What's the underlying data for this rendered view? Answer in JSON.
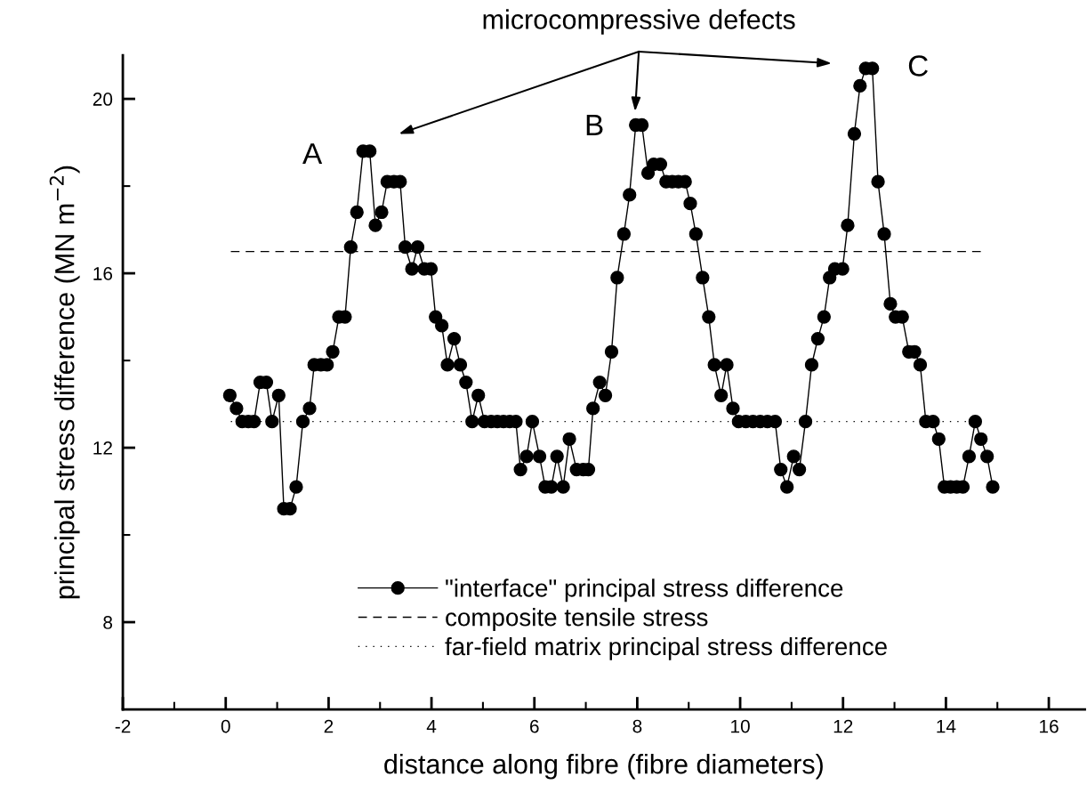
{
  "chart_data": {
    "type": "line",
    "xlabel": "distance along fibre (fibre diameters)",
    "ylabel": "principal stress difference (MN m$^{−2}$)",
    "xlim": [
      -2,
      16.7
    ],
    "ylim": [
      6,
      21
    ],
    "xticks": [
      -2,
      {
        "value": -1,
        "label": null
      },
      0,
      {
        "value": 1,
        "label": null
      },
      2,
      {
        "value": 3,
        "label": null
      },
      4,
      {
        "value": 5,
        "label": null
      },
      6,
      {
        "value": 7,
        "label": null
      },
      8,
      {
        "value": 9,
        "label": null
      },
      10,
      {
        "value": 11,
        "label": null
      },
      12,
      {
        "value": 13,
        "label": null
      },
      14,
      {
        "value": 15,
        "label": null
      },
      16
    ],
    "yticks": [
      8,
      {
        "value": 10,
        "label": null
      },
      12,
      {
        "value": 14,
        "label": null
      },
      16,
      {
        "value": 18,
        "label": null
      },
      20
    ],
    "grid": false,
    "legend": "bottom",
    "series": [
      {
        "name": "\"interface\" principal stress difference",
        "color": "#000000",
        "marker": "circle",
        "line_style": "solid",
        "x": [
          0.08,
          0.21,
          0.32,
          0.44,
          0.55,
          0.67,
          0.79,
          0.9,
          1.03,
          1.13,
          1.25,
          1.37,
          1.5,
          1.63,
          1.72,
          1.85,
          1.97,
          2.08,
          2.2,
          2.32,
          2.43,
          2.55,
          2.67,
          2.8,
          2.91,
          3.03,
          3.14,
          3.27,
          3.39,
          3.49,
          3.62,
          3.73,
          3.86,
          3.99,
          4.08,
          4.2,
          4.31,
          4.44,
          4.56,
          4.67,
          4.79,
          4.91,
          5.03,
          5.16,
          5.28,
          5.4,
          5.52,
          5.64,
          5.73,
          5.85,
          5.96,
          6.1,
          6.21,
          6.33,
          6.44,
          6.56,
          6.68,
          6.82,
          6.95,
          7.05,
          7.14,
          7.27,
          7.38,
          7.5,
          7.61,
          7.74,
          7.85,
          7.97,
          8.09,
          8.21,
          8.32,
          8.45,
          8.56,
          8.68,
          8.8,
          8.93,
          9.03,
          9.14,
          9.27,
          9.39,
          9.5,
          9.63,
          9.74,
          9.86,
          9.97,
          10.11,
          10.25,
          10.39,
          10.53,
          10.68,
          10.79,
          10.91,
          11.04,
          11.15,
          11.27,
          11.39,
          11.51,
          11.63,
          11.74,
          11.84,
          11.99,
          12.09,
          12.22,
          12.33,
          12.44,
          12.57,
          12.68,
          12.8,
          12.92,
          13.02,
          13.15,
          13.28,
          13.39,
          13.5,
          13.61,
          13.75,
          13.86,
          13.97,
          14.09,
          14.21,
          14.33,
          14.45,
          14.57,
          14.68,
          14.8,
          14.91
        ],
        "values": [
          13.2,
          12.9,
          12.6,
          12.6,
          12.6,
          13.5,
          13.5,
          12.6,
          13.2,
          10.6,
          10.6,
          11.1,
          12.6,
          12.9,
          13.9,
          13.9,
          13.9,
          14.2,
          15.0,
          15.0,
          16.6,
          17.4,
          18.8,
          18.8,
          17.1,
          17.4,
          18.1,
          18.1,
          18.1,
          16.6,
          16.1,
          16.6,
          16.1,
          16.1,
          15.0,
          14.8,
          13.9,
          14.5,
          13.9,
          13.5,
          12.6,
          13.2,
          12.6,
          12.6,
          12.6,
          12.6,
          12.6,
          12.6,
          11.5,
          11.8,
          12.6,
          11.8,
          11.1,
          11.1,
          11.8,
          11.1,
          12.2,
          11.5,
          11.5,
          11.5,
          12.9,
          13.5,
          13.2,
          14.2,
          15.9,
          16.9,
          17.8,
          19.4,
          19.4,
          18.3,
          18.5,
          18.5,
          18.1,
          18.1,
          18.1,
          18.1,
          17.6,
          16.9,
          15.9,
          15.0,
          13.9,
          13.2,
          13.9,
          12.9,
          12.6,
          12.6,
          12.6,
          12.6,
          12.6,
          12.6,
          11.5,
          11.1,
          11.8,
          11.5,
          12.6,
          13.9,
          14.5,
          15.0,
          15.9,
          16.1,
          16.1,
          17.1,
          19.2,
          20.3,
          20.7,
          20.7,
          18.1,
          16.9,
          15.3,
          15.0,
          15.0,
          14.2,
          14.2,
          13.9,
          12.6,
          12.6,
          12.2,
          11.1,
          11.1,
          11.1,
          11.1,
          11.8,
          12.6,
          12.2,
          11.8,
          11.1
        ]
      },
      {
        "name": "composite tensile stress",
        "type": "line",
        "color": "#000000",
        "marker": "none",
        "line_style": "dashed",
        "x": [
          0.1,
          14.75
        ],
        "values": [
          16.5,
          16.5
        ]
      },
      {
        "name": "far-field matrix principal stress difference",
        "type": "line",
        "color": "#000000",
        "marker": "none",
        "line_style": "dotted",
        "x": [
          0.1,
          14.75
        ],
        "values": [
          12.6,
          12.6
        ]
      }
    ],
    "annotations": [
      "microcompressive defects",
      {
        "text": "A",
        "x": 2.74,
        "y": 18.8
      },
      {
        "text": "B",
        "x": 8.03,
        "y": 19.4
      },
      {
        "text": "C",
        "x": 12.5,
        "y": 20.7
      }
    ]
  }
}
